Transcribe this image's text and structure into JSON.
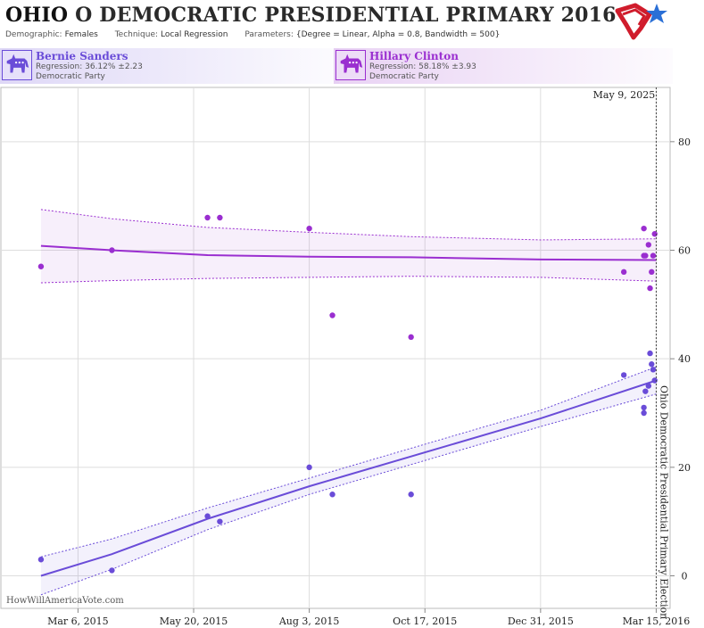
{
  "header": {
    "state": "OHIO",
    "title_rest": "O DEMOCRATIC PRESIDENTIAL PRIMARY 2016",
    "demographic_label": "Demographic:",
    "demographic": "Females",
    "technique_label": "Technique:",
    "technique": "Local Regression",
    "parameters_label": "Parameters:",
    "parameters": "{Degree = Linear, Alpha = 0.8, Bandwidth = 500}"
  },
  "candidates": [
    {
      "name": "Bernie Sanders",
      "regression": "Regression: 36.12% ±2.23",
      "party": "Democratic Party",
      "color": "#6a4cd8"
    },
    {
      "name": "Hillary Clinton",
      "regression": "Regression: 58.18% ±3.93",
      "party": "Democratic Party",
      "color": "#9a2ed0"
    }
  ],
  "footer": "HowWillAmericaVote.com",
  "chart_data": {
    "type": "scatter",
    "x_axis": {
      "type": "date",
      "range": [
        "2015-01-15",
        "2016-03-24"
      ],
      "ticks": [
        {
          "date": "2015-03-06",
          "label": "Mar 6, 2015"
        },
        {
          "date": "2015-05-20",
          "label": "May 20, 2015"
        },
        {
          "date": "2015-08-03",
          "label": "Aug 3, 2015"
        },
        {
          "date": "2015-10-17",
          "label": "Oct 17, 2015"
        },
        {
          "date": "2015-12-31",
          "label": "Dec 31, 2015"
        },
        {
          "date": "2016-03-15",
          "label": "Mar 15, 2016"
        }
      ],
      "grid": true
    },
    "y_axis": {
      "range": [
        -6,
        90
      ],
      "ticks": [
        0,
        20,
        40,
        60,
        80
      ],
      "position": "right",
      "grid": true
    },
    "event": {
      "date": "2016-03-15",
      "label": "Ohio Democratic Presidential Primary Election",
      "top_label": "May 9, 2025"
    },
    "series": [
      {
        "name": "Hillary Clinton",
        "color": "#9a2ed0",
        "points": [
          [
            "2015-02-10",
            57
          ],
          [
            "2015-03-28",
            60
          ],
          [
            "2015-05-29",
            66
          ],
          [
            "2015-06-06",
            66
          ],
          [
            "2015-08-03",
            64
          ],
          [
            "2015-08-18",
            48
          ],
          [
            "2015-10-08",
            44
          ],
          [
            "2016-02-23",
            56
          ],
          [
            "2016-03-07",
            64
          ],
          [
            "2016-03-07",
            59
          ],
          [
            "2016-03-08",
            59
          ],
          [
            "2016-03-10",
            61
          ],
          [
            "2016-03-11",
            53
          ],
          [
            "2016-03-12",
            56
          ],
          [
            "2016-03-13",
            59
          ],
          [
            "2016-03-14",
            63
          ]
        ],
        "trend": [
          [
            "2015-02-10",
            60.8
          ],
          [
            "2015-03-28",
            60.0
          ],
          [
            "2015-05-29",
            59.1
          ],
          [
            "2015-08-03",
            58.8
          ],
          [
            "2015-10-08",
            58.7
          ],
          [
            "2015-12-31",
            58.3
          ],
          [
            "2016-03-15",
            58.2
          ]
        ],
        "band_upper": [
          [
            "2015-02-10",
            67.5
          ],
          [
            "2015-03-28",
            65.8
          ],
          [
            "2015-05-29",
            64.2
          ],
          [
            "2015-08-03",
            63.3
          ],
          [
            "2015-10-08",
            62.5
          ],
          [
            "2015-12-31",
            61.9
          ],
          [
            "2016-03-15",
            62.1
          ]
        ],
        "band_lower": [
          [
            "2015-02-10",
            54.0
          ],
          [
            "2015-03-28",
            54.4
          ],
          [
            "2015-05-29",
            54.8
          ],
          [
            "2015-08-03",
            55.0
          ],
          [
            "2015-10-08",
            55.2
          ],
          [
            "2015-12-31",
            55.0
          ],
          [
            "2016-03-15",
            54.3
          ]
        ]
      },
      {
        "name": "Bernie Sanders",
        "color": "#6a4cd8",
        "points": [
          [
            "2015-02-10",
            3
          ],
          [
            "2015-03-28",
            1
          ],
          [
            "2015-05-29",
            11
          ],
          [
            "2015-06-06",
            10
          ],
          [
            "2015-08-03",
            20
          ],
          [
            "2015-08-18",
            15
          ],
          [
            "2015-10-08",
            15
          ],
          [
            "2016-02-23",
            37
          ],
          [
            "2016-03-07",
            30
          ],
          [
            "2016-03-07",
            31
          ],
          [
            "2016-03-08",
            34
          ],
          [
            "2016-03-10",
            35
          ],
          [
            "2016-03-11",
            41
          ],
          [
            "2016-03-12",
            39
          ],
          [
            "2016-03-13",
            38
          ],
          [
            "2016-03-14",
            36
          ]
        ],
        "trend": [
          [
            "2015-02-10",
            0
          ],
          [
            "2015-03-28",
            4
          ],
          [
            "2015-05-29",
            10.5
          ],
          [
            "2015-08-03",
            16.5
          ],
          [
            "2015-10-08",
            22
          ],
          [
            "2015-12-31",
            29
          ],
          [
            "2016-03-15",
            36
          ]
        ],
        "band_upper": [
          [
            "2015-02-10",
            3.5
          ],
          [
            "2015-03-28",
            6.8
          ],
          [
            "2015-05-29",
            12.5
          ],
          [
            "2015-08-03",
            18
          ],
          [
            "2015-10-08",
            23.5
          ],
          [
            "2015-12-31",
            30.5
          ],
          [
            "2016-03-15",
            38.5
          ]
        ],
        "band_lower": [
          [
            "2015-02-10",
            -3.5
          ],
          [
            "2015-03-28",
            1.2
          ],
          [
            "2015-05-29",
            8.5
          ],
          [
            "2015-08-03",
            15
          ],
          [
            "2015-10-08",
            20.5
          ],
          [
            "2015-12-31",
            27.5
          ],
          [
            "2016-03-15",
            33.5
          ]
        ]
      }
    ]
  }
}
